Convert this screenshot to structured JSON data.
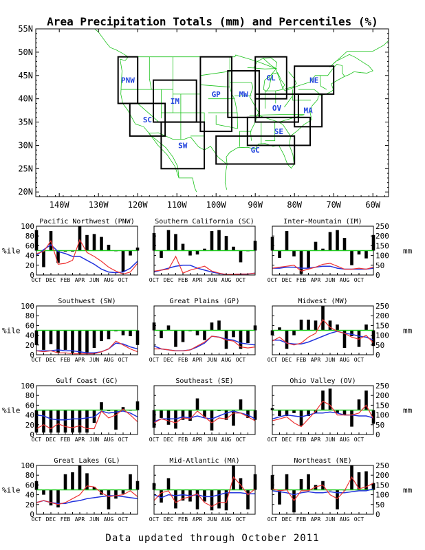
{
  "title": "Area Precipitation Totals (mm) and Percentiles (%)",
  "footer": "Data updated through October 2011",
  "map": {
    "lat_ticks": [
      "55N",
      "50N",
      "45N",
      "40N",
      "35N",
      "30N",
      "25N",
      "20N"
    ],
    "lon_ticks": [
      "140W",
      "130W",
      "120W",
      "110W",
      "100W",
      "90W",
      "80W",
      "70W",
      "60W"
    ],
    "regions": [
      {
        "label": "PNW",
        "lon_range": [
          -125,
          -120
        ],
        "lat_range": [
          39,
          49
        ]
      },
      {
        "label": "SC",
        "lon_range": [
          -122,
          -113
        ],
        "lat_range": [
          32,
          39
        ]
      },
      {
        "label": "IM",
        "lon_range": [
          -116,
          -105
        ],
        "lat_range": [
          35,
          44
        ]
      },
      {
        "label": "SW",
        "lon_range": [
          -114,
          -103
        ],
        "lat_range": [
          25,
          35
        ]
      },
      {
        "label": "GP",
        "lon_range": [
          -104,
          -96
        ],
        "lat_range": [
          33,
          49
        ]
      },
      {
        "label": "MW",
        "lon_range": [
          -97,
          -89
        ],
        "lat_range": [
          36,
          46
        ]
      },
      {
        "label": "GL",
        "lon_range": [
          -90,
          -82
        ],
        "lat_range": [
          40,
          49
        ]
      },
      {
        "label": "OV",
        "lon_range": [
          -90,
          -79
        ],
        "lat_range": [
          35,
          41
        ]
      },
      {
        "label": "NE",
        "lon_range": [
          -80,
          -70
        ],
        "lat_range": [
          41,
          47
        ]
      },
      {
        "label": "MA",
        "lon_range": [
          -80,
          -73
        ],
        "lat_range": [
          34,
          41
        ]
      },
      {
        "label": "SE",
        "lon_range": [
          -92,
          -76
        ],
        "lat_range": [
          30,
          36
        ]
      },
      {
        "label": "GC",
        "lon_range": [
          -100,
          -80
        ],
        "lat_range": [
          26,
          32
        ]
      }
    ]
  },
  "panel_axis": {
    "left_label": "%ile",
    "right_label": "mm",
    "left_ticks": [
      0,
      20,
      40,
      60,
      80,
      100
    ],
    "right_ticks": [
      0,
      50,
      100,
      150,
      200,
      250
    ],
    "x_ticks": [
      "OCT",
      "DEC",
      "FEB",
      "APR",
      "JUN",
      "AUG",
      "OCT"
    ]
  },
  "chart_data": [
    {
      "type": "bar",
      "title": "Pacific Northwest (PNW)",
      "percentile": [
        92,
        16,
        90,
        25,
        48,
        48,
        100,
        82,
        84,
        78,
        62,
        50,
        6,
        40,
        56
      ],
      "total_mm": [
        110,
        120,
        175,
        55,
        60,
        75,
        180,
        115,
        95,
        70,
        40,
        20,
        5,
        15,
        60
      ],
      "normal_mm": [
        100,
        130,
        155,
        120,
        110,
        95,
        95,
        75,
        55,
        30,
        15,
        12,
        15,
        35,
        70
      ]
    },
    {
      "type": "bar",
      "title": "Southern California (SC)",
      "percentile": [
        86,
        35,
        92,
        84,
        64,
        40,
        42,
        54,
        90,
        92,
        80,
        58,
        26,
        50,
        70
      ],
      "total_mm": [
        20,
        25,
        30,
        95,
        10,
        25,
        35,
        45,
        20,
        10,
        2,
        3,
        5,
        5,
        10
      ],
      "normal_mm": [
        15,
        25,
        35,
        45,
        50,
        50,
        35,
        25,
        15,
        8,
        2,
        3,
        5,
        5,
        10
      ]
    },
    {
      "type": "bar",
      "title": "Inter-Mountain (IM)",
      "percentile": [
        78,
        35,
        90,
        38,
        2,
        14,
        68,
        54,
        88,
        92,
        76,
        20,
        42,
        34,
        82
      ],
      "total_mm": [
        35,
        40,
        45,
        50,
        20,
        30,
        40,
        55,
        60,
        45,
        30,
        30,
        35,
        30,
        40
      ],
      "normal_mm": [
        35,
        35,
        40,
        40,
        35,
        35,
        40,
        45,
        45,
        35,
        30,
        30,
        30,
        30,
        35
      ]
    },
    {
      "type": "bar",
      "title": "Southwest (SW)",
      "percentile": [
        20,
        10,
        22,
        4,
        10,
        4,
        2,
        2,
        14,
        28,
        32,
        48,
        40,
        38,
        20
      ],
      "total_mm": [
        20,
        15,
        20,
        10,
        10,
        5,
        5,
        5,
        5,
        15,
        30,
        70,
        50,
        30,
        15
      ],
      "normal_mm": [
        20,
        20,
        20,
        25,
        20,
        20,
        15,
        10,
        10,
        15,
        30,
        60,
        55,
        40,
        30
      ]
    },
    {
      "type": "bar",
      "title": "Great Plains (GP)",
      "percentile": [
        66,
        34,
        60,
        16,
        26,
        48,
        40,
        30,
        66,
        70,
        12,
        36,
        12,
        24,
        60
      ],
      "total_mm": [
        30,
        30,
        25,
        20,
        20,
        25,
        45,
        65,
        95,
        90,
        75,
        70,
        40,
        35,
        40
      ],
      "normal_mm": [
        45,
        30,
        25,
        20,
        20,
        25,
        40,
        60,
        95,
        90,
        80,
        75,
        60,
        55,
        50
      ]
    },
    {
      "type": "bar",
      "title": "Midwest (MW)",
      "percentile": [
        40,
        56,
        12,
        40,
        72,
        72,
        70,
        100,
        70,
        62,
        14,
        38,
        16,
        62,
        18
      ],
      "total_mm": [
        70,
        90,
        60,
        50,
        60,
        90,
        110,
        180,
        140,
        120,
        110,
        90,
        80,
        100,
        60
      ],
      "normal_mm": [
        75,
        75,
        60,
        55,
        55,
        65,
        80,
        95,
        110,
        120,
        110,
        105,
        95,
        90,
        75
      ]
    },
    {
      "type": "bar",
      "title": "Gulf Coast (GC)",
      "percentile": [
        4,
        4,
        4,
        4,
        4,
        4,
        4,
        4,
        24,
        66,
        48,
        10,
        56,
        50,
        68
      ],
      "total_mm": [
        30,
        50,
        30,
        55,
        40,
        35,
        45,
        30,
        30,
        120,
        85,
        100,
        130,
        100,
        65
      ],
      "normal_mm": [
        100,
        95,
        80,
        75,
        75,
        80,
        80,
        85,
        90,
        120,
        110,
        115,
        120,
        110,
        90
      ]
    },
    {
      "type": "bar",
      "title": "Southeast (SE)",
      "percentile": [
        14,
        34,
        20,
        12,
        30,
        28,
        74,
        36,
        8,
        48,
        30,
        18,
        72,
        34,
        30
      ],
      "total_mm": [
        60,
        80,
        70,
        60,
        85,
        80,
        120,
        90,
        60,
        85,
        80,
        110,
        110,
        90,
        70
      ],
      "normal_mm": [
        65,
        80,
        80,
        80,
        90,
        85,
        95,
        85,
        80,
        95,
        110,
        120,
        110,
        100,
        80
      ]
    },
    {
      "type": "bar",
      "title": "Ohio Valley (OV)",
      "percentile": [
        54,
        38,
        38,
        44,
        18,
        38,
        44,
        90,
        94,
        44,
        40,
        16,
        72,
        90,
        22
      ],
      "total_mm": [
        70,
        80,
        90,
        60,
        40,
        80,
        120,
        170,
        150,
        100,
        100,
        100,
        110,
        150,
        80
      ],
      "normal_mm": [
        80,
        90,
        100,
        95,
        90,
        100,
        110,
        110,
        115,
        110,
        100,
        100,
        95,
        95,
        85
      ]
    },
    {
      "type": "bar",
      "title": "Great Lakes (GL)",
      "percentile": [
        68,
        40,
        18,
        14,
        82,
        86,
        100,
        84,
        56,
        40,
        10,
        32,
        42,
        82,
        68
      ],
      "total_mm": [
        60,
        70,
        60,
        50,
        60,
        80,
        100,
        145,
        140,
        110,
        90,
        95,
        100,
        120,
        90
      ],
      "normal_mm": [
        60,
        70,
        60,
        55,
        55,
        65,
        70,
        80,
        85,
        90,
        95,
        95,
        90,
        85,
        80
      ]
    },
    {
      "type": "bar",
      "title": "Mid-Atlantic (MA)",
      "percentile": [
        64,
        24,
        74,
        12,
        28,
        26,
        10,
        26,
        8,
        12,
        8,
        100,
        74,
        10,
        82
      ],
      "total_mm": [
        70,
        110,
        120,
        60,
        80,
        90,
        105,
        60,
        40,
        60,
        60,
        190,
        150,
        100,
        130
      ],
      "normal_mm": [
        100,
        85,
        100,
        95,
        100,
        95,
        100,
        90,
        90,
        100,
        110,
        110,
        110,
        105,
        105
      ]
    },
    {
      "type": "bar",
      "title": "Northeast (NE)",
      "percentile": [
        80,
        20,
        82,
        4,
        72,
        82,
        60,
        68,
        50,
        10,
        50,
        100,
        86,
        88,
        64
      ],
      "total_mm": [
        130,
        120,
        125,
        70,
        120,
        120,
        140,
        150,
        100,
        80,
        120,
        190,
        130,
        140,
        160
      ],
      "normal_mm": [
        120,
        115,
        110,
        100,
        110,
        115,
        110,
        110,
        115,
        110,
        110,
        115,
        120,
        120,
        130
      ]
    }
  ]
}
